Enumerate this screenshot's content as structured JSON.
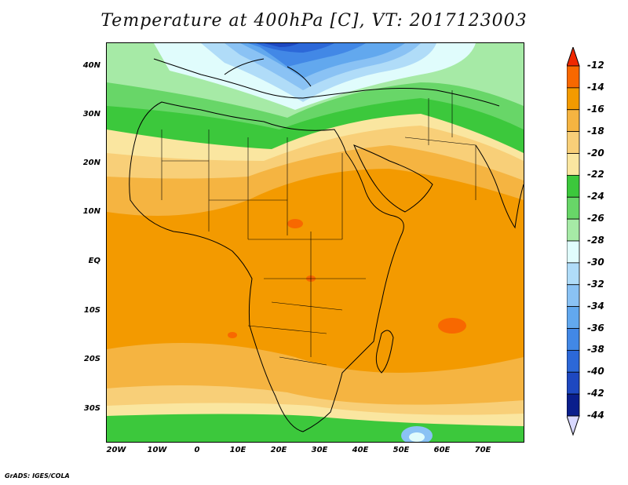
{
  "title": "Temperature at 400hPa [C], VT: 2017123003",
  "footer": "GrADS: IGES/COLA",
  "map": {
    "lat_labels": [
      "40N",
      "30N",
      "20N",
      "10N",
      "EQ",
      "10S",
      "20S",
      "30S"
    ],
    "lon_labels": [
      "20W",
      "10W",
      "0",
      "10E",
      "20E",
      "30E",
      "40E",
      "50E",
      "60E",
      "70E"
    ],
    "extent": {
      "lon": [
        -22,
        80
      ],
      "lat": [
        -37,
        45
      ]
    },
    "units": "C"
  },
  "colorbar": {
    "labels": [
      "-12",
      "-14",
      "-16",
      "-18",
      "-20",
      "-22",
      "-24",
      "-26",
      "-28",
      "-30",
      "-32",
      "-34",
      "-36",
      "-38",
      "-40",
      "-42",
      "-44"
    ],
    "colors": [
      "#f04000",
      "#f86800",
      "#f39a00",
      "#f5b441",
      "#f8cf78",
      "#fae6a0",
      "#3cc83c",
      "#68d668",
      "#a6eaa6",
      "#e0fcfc",
      "#b0dcf8",
      "#8ac2f4",
      "#62a8ee",
      "#4288e6",
      "#2c68d8",
      "#1e48c0",
      "#0a1e8c"
    ],
    "top_arrow_color": "#f02800",
    "bottom_arrow_color": "#d8d8ff"
  }
}
